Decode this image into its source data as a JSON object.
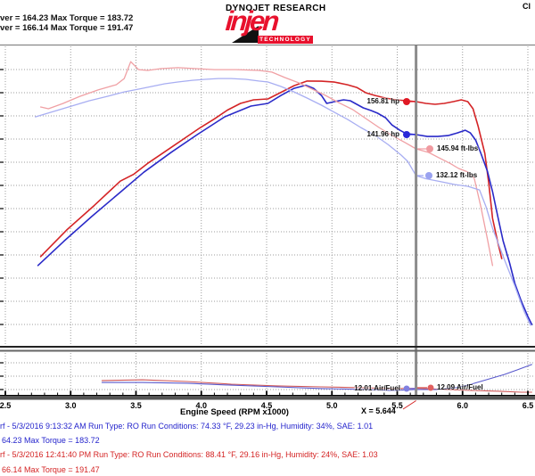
{
  "header": {
    "stats_lines": [
      "ver = 164.23    Max Torque = 183.72",
      "ver = 166.14    Max Torque = 191.47"
    ],
    "brand": "DYNOJET RESEARCH",
    "logo_name": "injen",
    "logo_tagline": "TECHNOLOGY",
    "titlebar_fragment": "Cl"
  },
  "axis": {
    "tick_labels": [
      "2.5",
      "3.0",
      "3.5",
      "4.0",
      "4.5",
      "5.0",
      "5.5",
      "6.0",
      "6.5"
    ]
  },
  "colors": {
    "run_red": "#d42426",
    "run_blue": "#2a2ac8",
    "run_red_torque": "#f0a0a4",
    "run_blue_torque": "#a8aef2",
    "afr_red": "#d05858",
    "afr_blue": "#5858cc",
    "cursor": "#8c8c8c",
    "gridline": "#9c9c9c",
    "logo_red": "#e8112d",
    "footer_blue": "#2424cc",
    "footer_red": "#d42424"
  },
  "chart_data": {
    "type": "line",
    "xlabel": "Engine Speed (RPM x1000)",
    "x_range": [
      2.46,
      6.55
    ],
    "x_major_step": 0.5,
    "x_minor_step": 0.1,
    "grid": true,
    "runs": [
      {
        "name": "blue run",
        "max_power": 164.23,
        "max_torque": 183.72,
        "timestamp": "5/3/2016 9:13:32 AM",
        "run_type": "RO",
        "conditions": "74.33 °F, 29.23 in-Hg, Humidity: 34%, SAE: 1.01"
      },
      {
        "name": "red run",
        "max_power": 166.14,
        "max_torque": 191.47,
        "timestamp": "5/3/2016 12:41:40 PM",
        "run_type": "RO",
        "conditions": "88.41 °F, 29.16 in-Hg, Humidity: 24%, SAE: 1.03"
      }
    ],
    "cursor": {
      "x": 5.644,
      "label": "X = 5.644",
      "readouts": [
        {
          "series": "power-red",
          "value": 156.81,
          "text": "156.81 hp"
        },
        {
          "series": "power-blue",
          "value": 141.96,
          "text": "141.96 hp"
        },
        {
          "series": "torque-red",
          "value": 145.94,
          "text": "145.94 ft-lbs"
        },
        {
          "series": "torque-blue",
          "value": 132.12,
          "text": "132.12 ft-lbs"
        },
        {
          "series": "afr-blue",
          "value": 12.01,
          "text": "12.01 Air/Fuel"
        },
        {
          "series": "afr-red",
          "value": 12.09,
          "text": "12.09 Air/Fuel"
        }
      ]
    },
    "panels": [
      {
        "name": "power-torque",
        "series": [
          {
            "id": "power-red",
            "unit": "hp",
            "color": "run_red",
            "width": 1.6,
            "points": [
              [
                2.77,
                87
              ],
              [
                2.97,
                99
              ],
              [
                3.18,
                110
              ],
              [
                3.38,
                121
              ],
              [
                3.48,
                124
              ],
              [
                3.59,
                129
              ],
              [
                3.69,
                133
              ],
              [
                3.79,
                137
              ],
              [
                3.89,
                141
              ],
              [
                3.99,
                145
              ],
              [
                4.1,
                149
              ],
              [
                4.2,
                153
              ],
              [
                4.3,
                156
              ],
              [
                4.4,
                157.6
              ],
              [
                4.51,
                158
              ],
              [
                4.61,
                161
              ],
              [
                4.71,
                164
              ],
              [
                4.81,
                166.1
              ],
              [
                4.92,
                166
              ],
              [
                5.02,
                165.6
              ],
              [
                5.12,
                164.4
              ],
              [
                5.19,
                163.2
              ],
              [
                5.26,
                160.8
              ],
              [
                5.33,
                159.6
              ],
              [
                5.41,
                158.4
              ],
              [
                5.49,
                157.6
              ],
              [
                5.57,
                157.2
              ],
              [
                5.644,
                156.81
              ],
              [
                5.72,
                156
              ],
              [
                5.79,
                155.6
              ],
              [
                5.86,
                156
              ],
              [
                5.93,
                156.8
              ],
              [
                5.99,
                157.6
              ],
              [
                6.04,
                156.8
              ],
              [
                6.08,
                153.6
              ],
              [
                6.12,
                145.6
              ],
              [
                6.17,
                133.5
              ],
              [
                6.2,
                120.2
              ],
              [
                6.23,
                104.2
              ],
              [
                6.27,
                93.3
              ],
              [
                6.3,
                86.1
              ]
            ]
          },
          {
            "id": "power-blue",
            "unit": "hp",
            "color": "run_blue",
            "width": 1.6,
            "points": [
              [
                2.75,
                83
              ],
              [
                2.95,
                94
              ],
              [
                3.16,
                105
              ],
              [
                3.36,
                115
              ],
              [
                3.56,
                125
              ],
              [
                3.77,
                134
              ],
              [
                3.97,
                142
              ],
              [
                4.18,
                150
              ],
              [
                4.38,
                154.8
              ],
              [
                4.51,
                156
              ],
              [
                4.61,
                159.6
              ],
              [
                4.71,
                162.8
              ],
              [
                4.8,
                164.2
              ],
              [
                4.86,
                162.8
              ],
              [
                4.92,
                159.6
              ],
              [
                4.96,
                156
              ],
              [
                5.02,
                156.8
              ],
              [
                5.09,
                157.6
              ],
              [
                5.14,
                157.2
              ],
              [
                5.19,
                155.6
              ],
              [
                5.24,
                154
              ],
              [
                5.3,
                152.8
              ],
              [
                5.35,
                151.6
              ],
              [
                5.41,
                149.6
              ],
              [
                5.46,
                146.3
              ],
              [
                5.52,
                143.9
              ],
              [
                5.57,
                142.3
              ],
              [
                5.644,
                141.96
              ],
              [
                5.73,
                141.1
              ],
              [
                5.81,
                141.1
              ],
              [
                5.89,
                141.5
              ],
              [
                5.96,
                142.7
              ],
              [
                6.02,
                143.9
              ],
              [
                6.06,
                142.7
              ],
              [
                6.1,
                139.5
              ],
              [
                6.14,
                133.5
              ],
              [
                6.19,
                125.5
              ],
              [
                6.23,
                116.2
              ],
              [
                6.27,
                105
              ],
              [
                6.31,
                94.1
              ],
              [
                6.36,
                84.1
              ],
              [
                6.4,
                74.9
              ],
              [
                6.45,
                66.8
              ],
              [
                6.5,
                60
              ],
              [
                6.53,
                56.4
              ]
            ]
          },
          {
            "id": "torque-red",
            "unit": "ftlbs",
            "color": "run_red_torque",
            "width": 1.3,
            "points": [
              [
                2.77,
                167.6
              ],
              [
                2.83,
                166.7
              ],
              [
                2.94,
                169.4
              ],
              [
                3.07,
                173.1
              ],
              [
                3.21,
                176.4
              ],
              [
                3.35,
                179.1
              ],
              [
                3.41,
                182.3
              ],
              [
                3.46,
                191
              ],
              [
                3.52,
                186.9
              ],
              [
                3.59,
                186.5
              ],
              [
                3.69,
                187.4
              ],
              [
                3.82,
                187.9
              ],
              [
                3.96,
                187.4
              ],
              [
                4.1,
                186.9
              ],
              [
                4.27,
                186.9
              ],
              [
                4.44,
                186.5
              ],
              [
                4.54,
                185.6
              ],
              [
                4.64,
                182.8
              ],
              [
                4.75,
                180
              ],
              [
                4.85,
                176.8
              ],
              [
                4.95,
                173.6
              ],
              [
                5.05,
                169.9
              ],
              [
                5.16,
                166.2
              ],
              [
                5.26,
                161.6
              ],
              [
                5.36,
                157
              ],
              [
                5.46,
                152.9
              ],
              [
                5.56,
                149.2
              ],
              [
                5.644,
                145.94
              ],
              [
                5.74,
                144.1
              ],
              [
                5.82,
                141.3
              ],
              [
                5.9,
                138.6
              ],
              [
                5.97,
                135.8
              ],
              [
                6.04,
                134
              ],
              [
                6.09,
                130.7
              ],
              [
                6.14,
                116
              ],
              [
                6.19,
                99.4
              ],
              [
                6.23,
                85.6
              ]
            ]
          },
          {
            "id": "torque-blue",
            "unit": "ftlbs",
            "color": "run_blue_torque",
            "width": 1.3,
            "points": [
              [
                2.73,
                162.5
              ],
              [
                2.87,
                165.3
              ],
              [
                3.01,
                168.1
              ],
              [
                3.14,
                170.8
              ],
              [
                3.28,
                173.1
              ],
              [
                3.41,
                175.4
              ],
              [
                3.52,
                176.8
              ],
              [
                3.62,
                178.2
              ],
              [
                3.72,
                179.6
              ],
              [
                3.82,
                180.5
              ],
              [
                3.93,
                181.4
              ],
              [
                4.03,
                181.9
              ],
              [
                4.13,
                182.3
              ],
              [
                4.23,
                182.3
              ],
              [
                4.34,
                181.9
              ],
              [
                4.44,
                181
              ],
              [
                4.51,
                180.5
              ],
              [
                4.61,
                178.2
              ],
              [
                4.71,
                175.4
              ],
              [
                4.81,
                172.2
              ],
              [
                4.92,
                168.5
              ],
              [
                5.02,
                164.8
              ],
              [
                5.12,
                161.2
              ],
              [
                5.22,
                157
              ],
              [
                5.33,
                152.9
              ],
              [
                5.43,
                148.2
              ],
              [
                5.53,
                142.7
              ],
              [
                5.58,
                139.5
              ],
              [
                5.644,
                132.12
              ],
              [
                5.72,
                130.5
              ],
              [
                5.84,
                128.9
              ],
              [
                5.94,
                127.5
              ],
              [
                6.04,
                126.6
              ],
              [
                6.13,
                124.7
              ],
              [
                6.18,
                116
              ],
              [
                6.23,
                104.9
              ],
              [
                6.32,
                88.8
              ],
              [
                6.4,
                75
              ],
              [
                6.47,
                62.1
              ],
              [
                6.52,
                54.7
              ]
            ]
          }
        ]
      },
      {
        "name": "air-fuel",
        "series": [
          {
            "id": "afr-red",
            "unit": "afr",
            "color": "afr_red",
            "width": 1.1,
            "points": [
              [
                3.24,
                12.67
              ],
              [
                3.55,
                12.73
              ],
              [
                3.89,
                12.6
              ],
              [
                4.23,
                12.4
              ],
              [
                4.58,
                12.27
              ],
              [
                4.92,
                12.2
              ],
              [
                5.26,
                12.13
              ],
              [
                5.46,
                12.07
              ],
              [
                5.644,
                12.09
              ],
              [
                5.87,
                12.0
              ],
              [
                6.08,
                11.93
              ],
              [
                6.28,
                11.87
              ],
              [
                6.45,
                11.8
              ],
              [
                6.53,
                11.8
              ]
            ]
          },
          {
            "id": "afr-blue",
            "unit": "afr",
            "color": "afr_blue",
            "width": 1.1,
            "points": [
              [
                3.24,
                12.53
              ],
              [
                3.55,
                12.53
              ],
              [
                3.89,
                12.47
              ],
              [
                4.23,
                12.33
              ],
              [
                4.58,
                12.2
              ],
              [
                4.92,
                12.07
              ],
              [
                5.26,
                12.0
              ],
              [
                5.46,
                11.93
              ],
              [
                5.644,
                12.01
              ],
              [
                5.8,
                12.0
              ],
              [
                5.94,
                12.13
              ],
              [
                6.04,
                12.33
              ],
              [
                6.18,
                12.73
              ],
              [
                6.32,
                13.13
              ],
              [
                6.42,
                13.47
              ],
              [
                6.53,
                13.87
              ]
            ]
          }
        ]
      }
    ]
  },
  "footer": {
    "lines": [
      {
        "color": "blue",
        "text": "rf - 5/3/2016 9:13:32 AM  Run Type: RO  Run Conditions: 74.33 °F, 29.23 in-Hg,  Humidity:  34%, SAE: 1.01"
      },
      {
        "color": "blue",
        "text": "64.23  Max Torque = 183.72"
      },
      {
        "color": "red",
        "text": "rf - 5/3/2016 12:41:40 PM  Run Type: RO  Run Conditions: 88.41 °F, 29.16 in-Hg,  Humidity:  24%, SAE: 1.03"
      },
      {
        "color": "red",
        "text": "66.14  Max Torque = 191.47"
      }
    ]
  }
}
